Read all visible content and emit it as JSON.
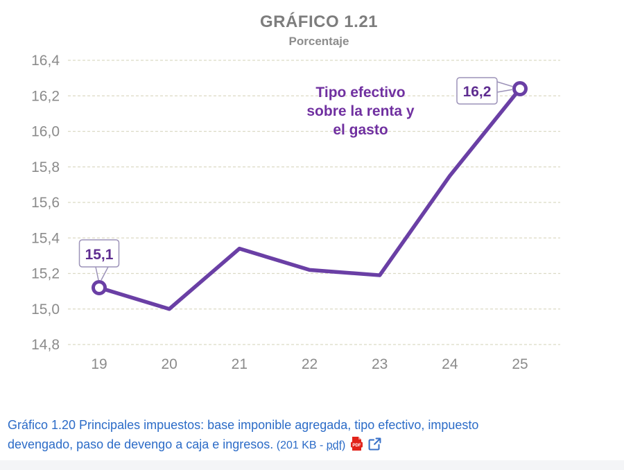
{
  "chart": {
    "title": "GRÁFICO 1.21",
    "subtitle": "Porcentaje",
    "annotation": "Tipo efectivo\nsobre la renta y\nel gasto",
    "colors": {
      "line": "#6A3FA5",
      "annotation_text": "#7030A0",
      "callout_text": "#5E2C90",
      "callout_border": "#9C92B8",
      "axis_text": "#8B8B8B",
      "grid": "#DBDAC4",
      "title_gray": "#7D7D7D"
    }
  },
  "chart_data": {
    "type": "line",
    "title": "GRÁFICO 1.21",
    "subtitle": "Porcentaje",
    "series_label": "Tipo efectivo sobre la renta y el gasto",
    "categories": [
      "19",
      "20",
      "21",
      "22",
      "23",
      "24",
      "25"
    ],
    "values": [
      15.12,
      15.0,
      15.34,
      15.22,
      15.19,
      15.75,
      16.24
    ],
    "point_labels": {
      "first": "15,1",
      "last": "16,2"
    },
    "yticks": {
      "values": [
        16.4,
        16.2,
        16.0,
        15.8,
        15.6,
        15.4,
        15.2,
        15.0,
        14.8
      ],
      "labels": [
        "16,4",
        "16,2",
        "16,0",
        "15,8",
        "15,6",
        "15,4",
        "15,2",
        "15,0",
        "14,8"
      ]
    },
    "ylim": [
      14.8,
      16.4
    ],
    "grid": "horizontal-dashed",
    "legend": "none",
    "line_color": "#6A3FA5",
    "marker_points": [
      "19",
      "25"
    ]
  },
  "caption": {
    "link_text": "Gráfico 1.20 Principales impuestos: base imponible agregada, tipo efectivo, impuesto\ndevengado, paso de devengo a caja e ingresos.",
    "size_prefix": " (201 KB - ",
    "size_link": "pdf",
    "size_suffix": ")",
    "link_color": "#2B6BC7",
    "pdf_icon_color": "#E2231A",
    "external_icon_color": "#3A72C8",
    "pdf_icon_label": "PDF"
  }
}
